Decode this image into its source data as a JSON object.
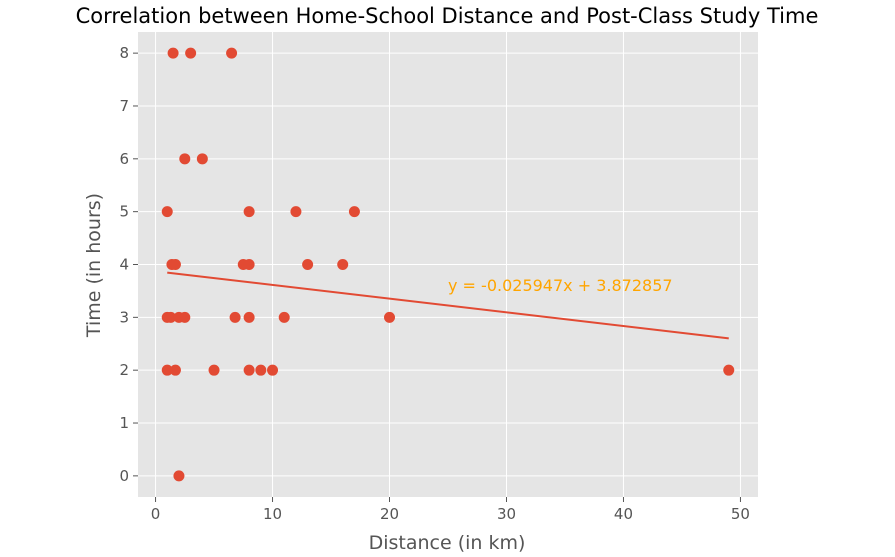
{
  "chart_data": {
    "type": "scatter",
    "title": "Correlation between Home-School Distance and Post-Class Study Time",
    "xlabel": "Distance (in km)",
    "ylabel": "Time (in hours)",
    "xlim": [
      -1.5,
      51.5
    ],
    "ylim": [
      -0.4,
      8.4
    ],
    "xticks": [
      0,
      10,
      20,
      30,
      40,
      50
    ],
    "yticks": [
      0,
      1,
      2,
      3,
      4,
      5,
      6,
      7,
      8
    ],
    "grid": true,
    "points": [
      {
        "x": 1.5,
        "y": 8
      },
      {
        "x": 3,
        "y": 8
      },
      {
        "x": 6.5,
        "y": 8
      },
      {
        "x": 2.5,
        "y": 6
      },
      {
        "x": 4,
        "y": 6
      },
      {
        "x": 1,
        "y": 5
      },
      {
        "x": 8,
        "y": 5
      },
      {
        "x": 12,
        "y": 5
      },
      {
        "x": 17,
        "y": 5
      },
      {
        "x": 1.4,
        "y": 4
      },
      {
        "x": 1.7,
        "y": 4
      },
      {
        "x": 7.5,
        "y": 4
      },
      {
        "x": 8,
        "y": 4
      },
      {
        "x": 13,
        "y": 4
      },
      {
        "x": 16,
        "y": 4
      },
      {
        "x": 1,
        "y": 3
      },
      {
        "x": 1.3,
        "y": 3
      },
      {
        "x": 2,
        "y": 3
      },
      {
        "x": 2.5,
        "y": 3
      },
      {
        "x": 6.8,
        "y": 3
      },
      {
        "x": 8,
        "y": 3
      },
      {
        "x": 11,
        "y": 3
      },
      {
        "x": 20,
        "y": 3
      },
      {
        "x": 1,
        "y": 2
      },
      {
        "x": 1.7,
        "y": 2
      },
      {
        "x": 5,
        "y": 2
      },
      {
        "x": 8,
        "y": 2
      },
      {
        "x": 9,
        "y": 2
      },
      {
        "x": 10,
        "y": 2
      },
      {
        "x": 49,
        "y": 2
      },
      {
        "x": 2,
        "y": 0
      }
    ],
    "regression": {
      "slope": -0.025947,
      "intercept": 3.872857,
      "x_range": [
        1,
        49
      ],
      "equation_label": "y = -0.025947x + 3.872857"
    },
    "colors": {
      "background": "#e5e5e5",
      "grid": "#ffffff",
      "points": "#e24a33",
      "line": "#e24a33",
      "annotation": "#ffa500"
    }
  }
}
